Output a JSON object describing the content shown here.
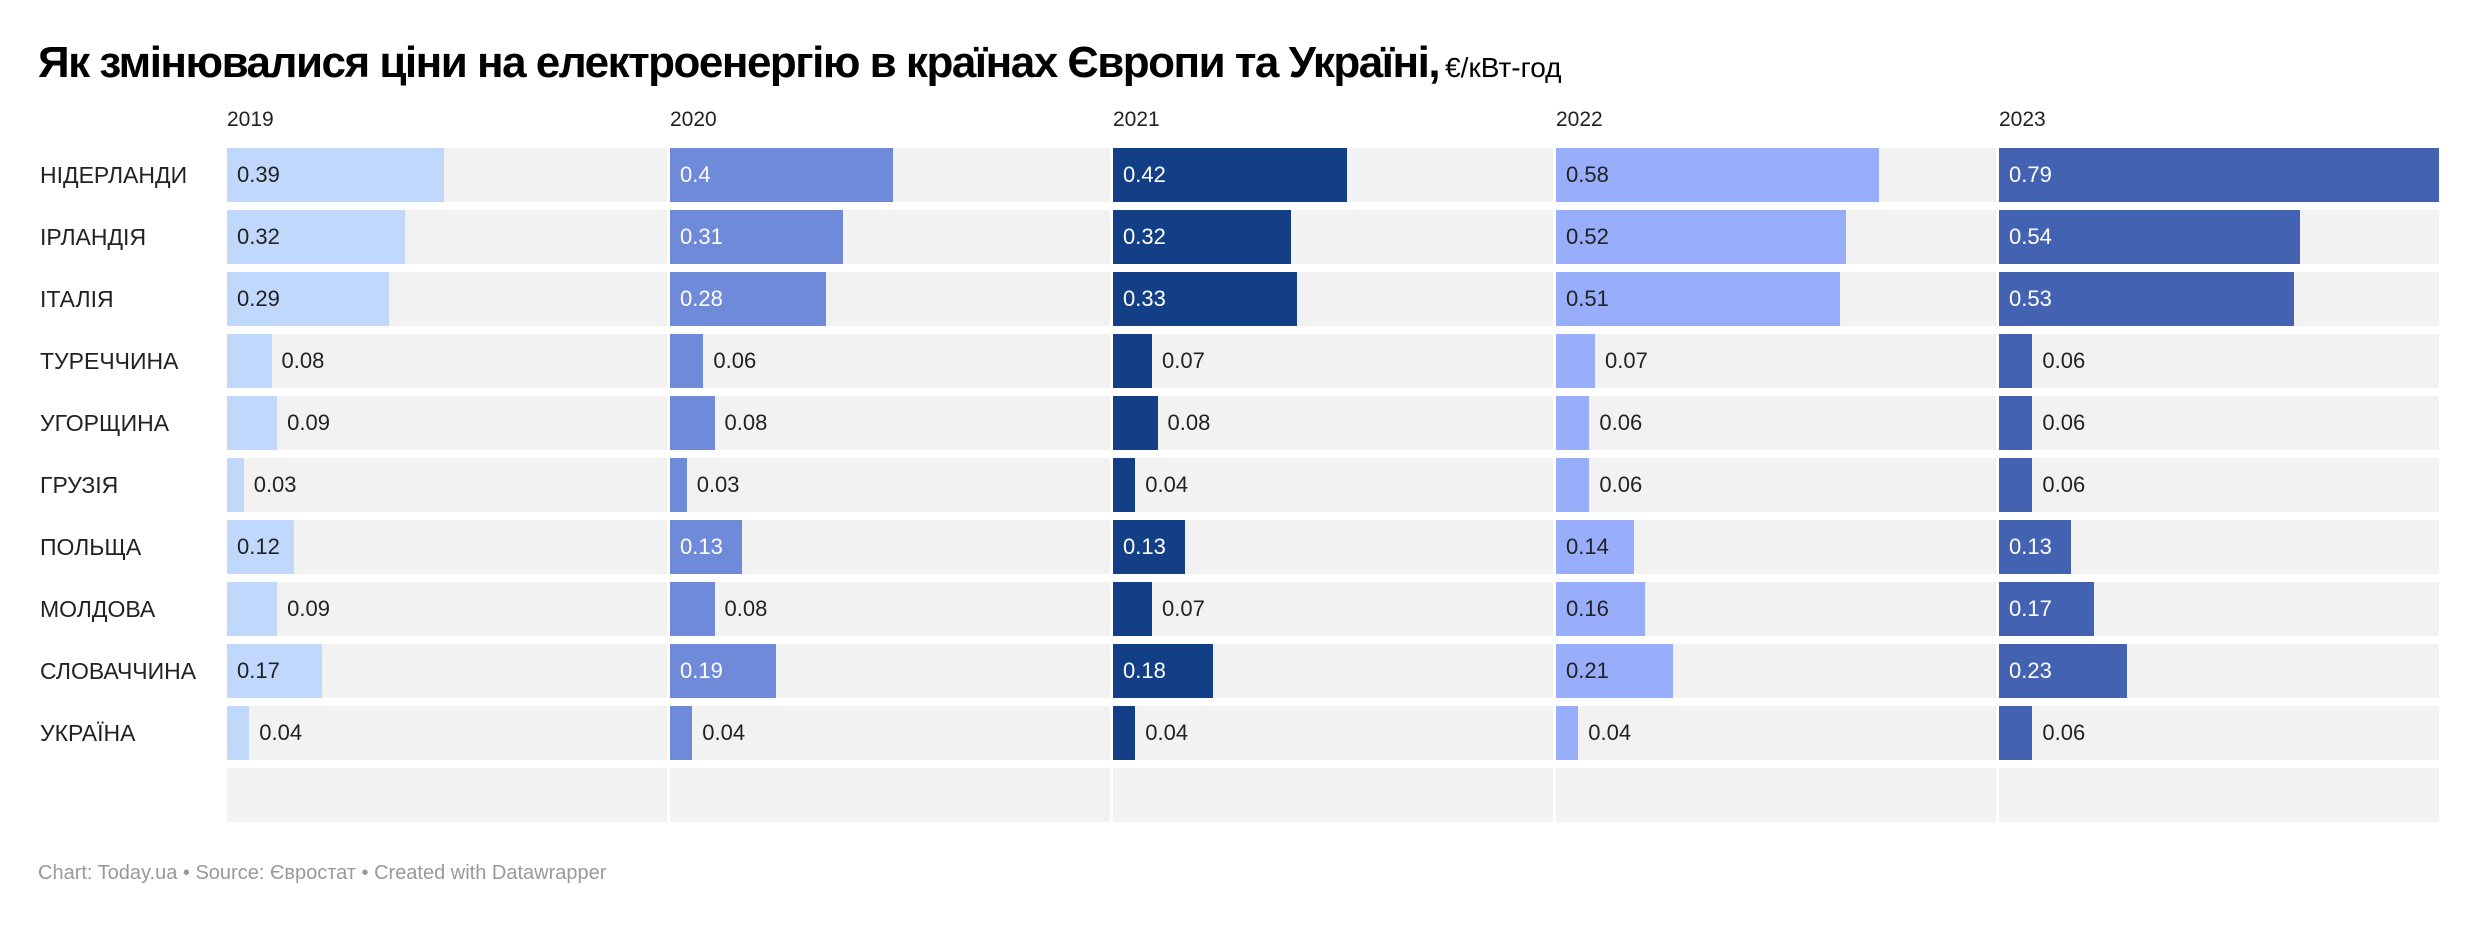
{
  "title": "Як змінювалися ціни на електроенергію в країнах Європи та Україні,",
  "unit": "€/кВт-год",
  "footer": "Chart: Today.ua • Source: Євростат • Created with Datawrapper",
  "chart_data": {
    "type": "bar",
    "orientation": "horizontal",
    "layout": "small-multiples",
    "title": "Як змінювалися ціни на електроенергію в країнах Європи та Україні,",
    "unit": "€/кВт-год",
    "xlim": [
      0,
      0.79
    ],
    "categories": [
      "НІДЕРЛАНДИ",
      "ІРЛАНДІЯ",
      "ІТАЛІЯ",
      "ТУРЕЧЧИНА",
      "УГОРЩИНА",
      "ГРУЗІЯ",
      "ПОЛЬЩА",
      "МОЛДОВА",
      "СЛОВАЧЧИНА",
      "УКРАЇНА"
    ],
    "series": [
      {
        "name": "2019",
        "color": "#c1d8fd",
        "values": [
          0.39,
          0.32,
          0.29,
          0.08,
          0.09,
          0.03,
          0.12,
          0.09,
          0.17,
          0.04
        ]
      },
      {
        "name": "2020",
        "color": "#6f8ad9",
        "values": [
          0.4,
          0.31,
          0.28,
          0.06,
          0.08,
          0.03,
          0.13,
          0.08,
          0.19,
          0.04
        ]
      },
      {
        "name": "2021",
        "color": "#133f87",
        "values": [
          0.42,
          0.32,
          0.33,
          0.07,
          0.08,
          0.04,
          0.13,
          0.07,
          0.18,
          0.04
        ]
      },
      {
        "name": "2022",
        "color": "#98aefb",
        "values": [
          0.58,
          0.52,
          0.51,
          0.07,
          0.06,
          0.06,
          0.14,
          0.16,
          0.21,
          0.04
        ]
      },
      {
        "name": "2023",
        "color": "#4363b2",
        "values": [
          0.79,
          0.54,
          0.53,
          0.06,
          0.06,
          0.06,
          0.13,
          0.17,
          0.23,
          0.06
        ]
      }
    ]
  }
}
